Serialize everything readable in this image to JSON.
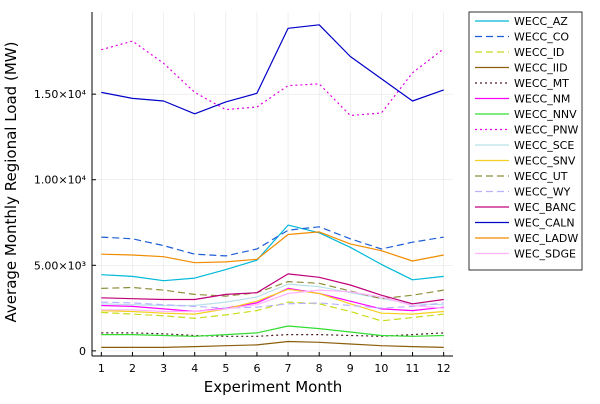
{
  "chart_data": {
    "type": "line",
    "title": "",
    "xlabel": "Experiment Month",
    "ylabel": "Average Monthly Regional Load (MW)",
    "x": [
      1,
      2,
      3,
      4,
      5,
      6,
      7,
      8,
      9,
      10,
      11,
      12
    ],
    "xlim": [
      0.7,
      12.3
    ],
    "ylim": [
      -300,
      19800
    ],
    "xticks": [
      1,
      2,
      3,
      4,
      5,
      6,
      7,
      8,
      9,
      10,
      11,
      12
    ],
    "yticks": [
      {
        "value": 0,
        "label": "0"
      },
      {
        "value": 5000,
        "label": "5.00×10³"
      },
      {
        "value": 10000,
        "label": "1.00×10⁴"
      },
      {
        "value": 15000,
        "label": "1.50×10⁴"
      }
    ],
    "grid": true,
    "legend_position": "outer-top-right",
    "series": [
      {
        "name": "WECC_AZ",
        "color": "#00b8d9",
        "dash": "solid",
        "values": [
          4450,
          4350,
          4100,
          4250,
          4750,
          5300,
          7350,
          6900,
          6050,
          5050,
          4150,
          4350
        ]
      },
      {
        "name": "WECC_CO",
        "color": "#1e5ed6",
        "dash": "dash",
        "values": [
          6650,
          6550,
          6150,
          5650,
          5550,
          5950,
          7050,
          7250,
          6550,
          5950,
          6350,
          6650
        ]
      },
      {
        "name": "WECC_ID",
        "color": "#c8dc1a",
        "dash": "dash",
        "values": [
          2250,
          2150,
          2050,
          1900,
          2100,
          2350,
          2850,
          2750,
          2300,
          1750,
          1950,
          2150
        ]
      },
      {
        "name": "WECC_IID",
        "color": "#8b5e0a",
        "dash": "solid",
        "values": [
          200,
          200,
          200,
          250,
          300,
          350,
          550,
          500,
          400,
          300,
          250,
          200
        ]
      },
      {
        "name": "WECC_MT",
        "color": "#4a1a20",
        "dash": "dot",
        "values": [
          1050,
          1050,
          1000,
          900,
          850,
          850,
          950,
          950,
          900,
          850,
          950,
          1050
        ]
      },
      {
        "name": "WECC_NM",
        "color": "#ff00ff",
        "dash": "solid",
        "values": [
          2650,
          2600,
          2450,
          2300,
          2500,
          2800,
          3650,
          3350,
          2900,
          2450,
          2350,
          2550
        ]
      },
      {
        "name": "WECC_NNV",
        "color": "#33dd33",
        "dash": "solid",
        "values": [
          950,
          950,
          900,
          850,
          950,
          1050,
          1450,
          1300,
          1100,
          900,
          850,
          900
        ]
      },
      {
        "name": "WECC_PNW",
        "color": "#e600e6",
        "dash": "dot",
        "values": [
          17600,
          18100,
          16800,
          15100,
          14100,
          14250,
          15500,
          15600,
          13750,
          13900,
          16250,
          17650
        ]
      },
      {
        "name": "WECC_SCE",
        "color": "#b8e0ea",
        "dash": "solid",
        "values": [
          2750,
          2700,
          2650,
          2650,
          2850,
          3150,
          3900,
          3750,
          3400,
          3050,
          2750,
          2700
        ]
      },
      {
        "name": "WECC_SNV",
        "color": "#f6d020",
        "dash": "solid",
        "values": [
          2350,
          2300,
          2200,
          2150,
          2450,
          2900,
          3600,
          3350,
          2750,
          2200,
          2150,
          2300
        ]
      },
      {
        "name": "WECC_UT",
        "color": "#8e8e3a",
        "dash": "dash",
        "values": [
          3650,
          3700,
          3550,
          3300,
          3200,
          3400,
          4050,
          3950,
          3500,
          3050,
          3250,
          3550
        ]
      },
      {
        "name": "WECC_WY",
        "color": "#b9b3ff",
        "dash": "dash",
        "values": [
          2850,
          2800,
          2700,
          2600,
          2500,
          2550,
          2750,
          2800,
          2650,
          2500,
          2600,
          2800
        ]
      },
      {
        "name": "WEC_BANC",
        "color": "#c0007a",
        "dash": "solid",
        "values": [
          3100,
          3050,
          3000,
          3000,
          3300,
          3400,
          4500,
          4300,
          3850,
          3250,
          2750,
          3000
        ]
      },
      {
        "name": "WEC_CALN",
        "color": "#0000c8",
        "dash": "solid",
        "values": [
          15100,
          14750,
          14600,
          13850,
          14550,
          15050,
          18850,
          19050,
          17200,
          15900,
          14600,
          15250
        ]
      },
      {
        "name": "WEC_LADW",
        "color": "#f08c00",
        "dash": "solid",
        "values": [
          5650,
          5600,
          5500,
          5150,
          5200,
          5350,
          6800,
          6950,
          6250,
          5850,
          5250,
          5600
        ]
      },
      {
        "name": "WEC_SDGE",
        "color": "#ffb3ff",
        "dash": "solid",
        "values": [
          2400,
          2400,
          2300,
          2300,
          2450,
          2700,
          3350,
          3550,
          3450,
          3150,
          2650,
          2500
        ]
      }
    ]
  }
}
